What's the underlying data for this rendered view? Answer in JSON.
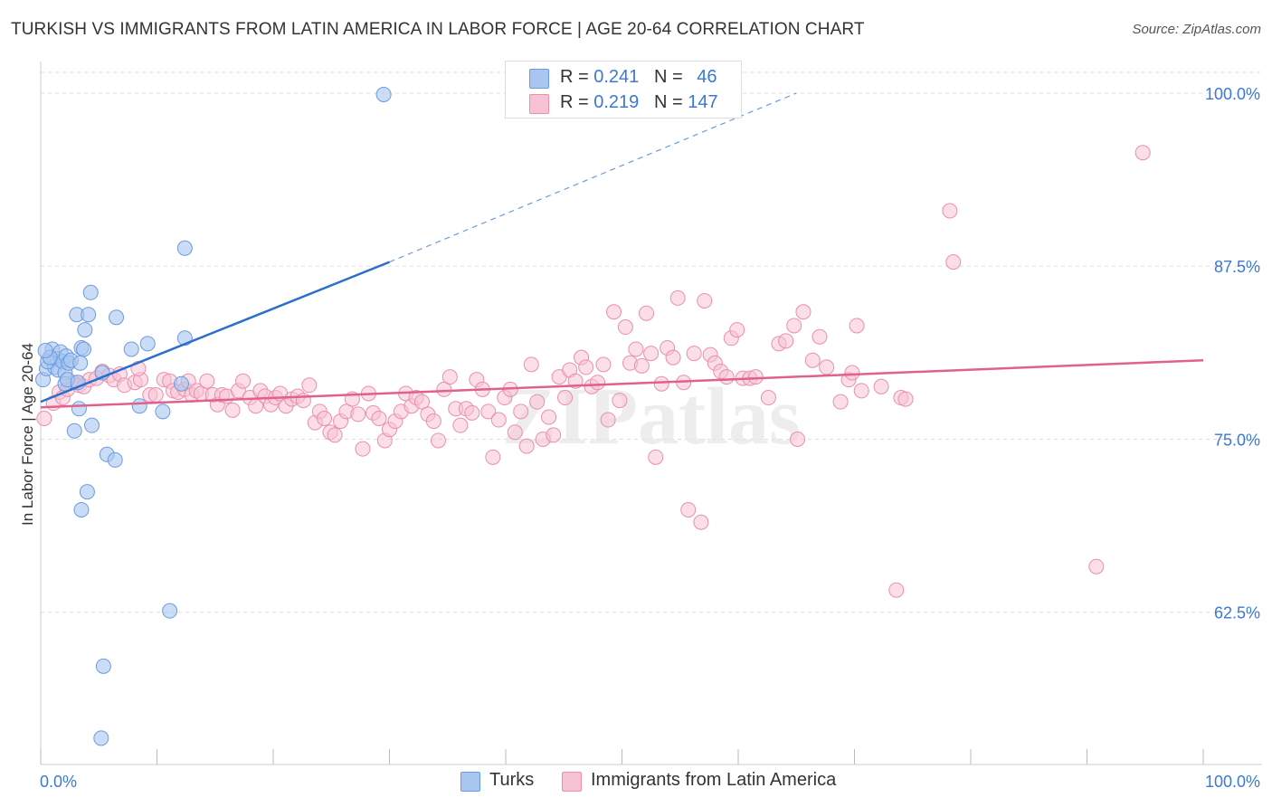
{
  "title": "TURKISH VS IMMIGRANTS FROM LATIN AMERICA IN LABOR FORCE | AGE 20-64 CORRELATION CHART",
  "source": "Source: ZipAtlas.com",
  "watermark": "ZIPatlas",
  "legend": {
    "turks": {
      "r_label": "R = ",
      "r_value": "0.241",
      "n_label": "N = ",
      "n_value": "46"
    },
    "latin": {
      "r_label": "R = ",
      "r_value": "0.219",
      "n_label": "N = ",
      "n_value": "147"
    }
  },
  "bottom_legend": {
    "turks": "Turks",
    "latin": "Immigrants from Latin America"
  },
  "colors": {
    "turks_fill": "#a8c6f0",
    "turks_stroke": "#6a9be0",
    "turks_line": "#2a6fcc",
    "latin_fill": "#f7c3d4",
    "latin_stroke": "#ea8fae",
    "latin_line": "#e0608e",
    "axis_text": "#3b78d8",
    "grid": "#dddddd"
  },
  "chart_data": {
    "type": "scatter",
    "title": "TURKISH VS IMMIGRANTS FROM LATIN AMERICA IN LABOR FORCE | AGE 20-64 CORRELATION CHART",
    "xlabel": "",
    "ylabel": "In Labor Force | Age 20-64",
    "xlim": [
      0,
      100
    ],
    "ylim": [
      51.5,
      101.5
    ],
    "x_tick_labels": [
      "0.0%",
      "100.0%"
    ],
    "y_ticks": [
      62.5,
      75.0,
      87.5,
      100.0
    ],
    "y_tick_labels": [
      "62.5%",
      "75.0%",
      "87.5%",
      "100.0%"
    ],
    "grid": true,
    "series": [
      {
        "name": "Turks",
        "points": [
          [
            0.2,
            79.3
          ],
          [
            0.5,
            80.1
          ],
          [
            0.8,
            80.9
          ],
          [
            1.0,
            81.5
          ],
          [
            1.2,
            80.2
          ],
          [
            1.4,
            80.8
          ],
          [
            1.5,
            80.0
          ],
          [
            1.7,
            81.3
          ],
          [
            1.9,
            80.6
          ],
          [
            2.1,
            79.8
          ],
          [
            2.2,
            81.0
          ],
          [
            2.4,
            80.5
          ],
          [
            2.6,
            80.7
          ],
          [
            2.1,
            79.0
          ],
          [
            2.3,
            79.3
          ],
          [
            2.9,
            75.6
          ],
          [
            3.2,
            79.1
          ],
          [
            3.4,
            80.5
          ],
          [
            3.5,
            81.6
          ],
          [
            3.3,
            77.2
          ],
          [
            3.7,
            81.5
          ],
          [
            3.1,
            84.0
          ],
          [
            3.8,
            82.9
          ],
          [
            3.5,
            69.9
          ],
          [
            4.1,
            84.0
          ],
          [
            4.0,
            71.2
          ],
          [
            4.4,
            76.0
          ],
          [
            4.3,
            85.6
          ],
          [
            5.3,
            79.8
          ],
          [
            5.4,
            58.6
          ],
          [
            5.2,
            53.4
          ],
          [
            5.7,
            73.9
          ],
          [
            6.4,
            73.5
          ],
          [
            6.5,
            83.8
          ],
          [
            7.8,
            81.5
          ],
          [
            8.5,
            77.4
          ],
          [
            9.2,
            81.9
          ],
          [
            10.5,
            77.0
          ],
          [
            11.1,
            62.6
          ],
          [
            12.1,
            79.0
          ],
          [
            12.4,
            82.3
          ],
          [
            12.4,
            88.8
          ],
          [
            29.5,
            99.9
          ],
          [
            0.6,
            80.6
          ],
          [
            0.8,
            80.9
          ],
          [
            0.4,
            81.4
          ]
        ],
        "trend": {
          "x": [
            0,
            30
          ],
          "y": [
            77.7,
            87.8
          ],
          "extended_x": [
            30,
            65
          ],
          "extended_y": [
            87.8,
            100.0
          ]
        }
      },
      {
        "name": "Immigrants from Latin America",
        "points": [
          [
            0.3,
            76.5
          ],
          [
            1.1,
            77.6
          ],
          [
            1.6,
            78.4
          ],
          [
            1.9,
            78.0
          ],
          [
            2.3,
            78.6
          ],
          [
            2.8,
            79.1
          ],
          [
            3.3,
            78.9
          ],
          [
            3.7,
            78.8
          ],
          [
            4.2,
            79.3
          ],
          [
            4.8,
            79.4
          ],
          [
            5.3,
            79.9
          ],
          [
            5.9,
            79.6
          ],
          [
            6.3,
            79.3
          ],
          [
            6.8,
            79.7
          ],
          [
            7.2,
            78.9
          ],
          [
            8.1,
            79.1
          ],
          [
            8.6,
            79.3
          ],
          [
            8.4,
            80.1
          ],
          [
            9.4,
            78.2
          ],
          [
            9.9,
            78.2
          ],
          [
            10.6,
            79.3
          ],
          [
            11.1,
            79.2
          ],
          [
            11.4,
            78.5
          ],
          [
            11.8,
            78.4
          ],
          [
            12.4,
            78.6
          ],
          [
            12.7,
            79.2
          ],
          [
            13.0,
            78.2
          ],
          [
            13.4,
            78.5
          ],
          [
            13.8,
            78.3
          ],
          [
            14.3,
            79.2
          ],
          [
            14.8,
            78.2
          ],
          [
            15.2,
            77.5
          ],
          [
            15.6,
            78.2
          ],
          [
            16.0,
            78.1
          ],
          [
            16.5,
            77.1
          ],
          [
            17.0,
            78.5
          ],
          [
            17.4,
            79.2
          ],
          [
            18.0,
            78.0
          ],
          [
            18.5,
            77.4
          ],
          [
            18.9,
            78.5
          ],
          [
            19.3,
            78.1
          ],
          [
            19.8,
            77.5
          ],
          [
            20.2,
            78.0
          ],
          [
            20.6,
            78.3
          ],
          [
            21.1,
            77.4
          ],
          [
            21.6,
            77.9
          ],
          [
            22.1,
            78.1
          ],
          [
            22.6,
            77.8
          ],
          [
            23.1,
            78.9
          ],
          [
            23.6,
            76.2
          ],
          [
            24.0,
            77.0
          ],
          [
            24.4,
            76.5
          ],
          [
            24.9,
            75.5
          ],
          [
            25.3,
            75.3
          ],
          [
            25.8,
            76.3
          ],
          [
            26.3,
            77.0
          ],
          [
            26.8,
            77.9
          ],
          [
            27.3,
            76.8
          ],
          [
            27.7,
            74.3
          ],
          [
            28.2,
            78.3
          ],
          [
            28.6,
            76.9
          ],
          [
            29.1,
            76.5
          ],
          [
            29.6,
            74.9
          ],
          [
            30.0,
            75.7
          ],
          [
            30.5,
            76.3
          ],
          [
            31.0,
            77.0
          ],
          [
            31.4,
            78.3
          ],
          [
            31.9,
            77.4
          ],
          [
            32.3,
            78.0
          ],
          [
            32.8,
            77.7
          ],
          [
            33.3,
            76.8
          ],
          [
            33.8,
            76.3
          ],
          [
            34.2,
            74.9
          ],
          [
            34.7,
            78.6
          ],
          [
            35.2,
            79.5
          ],
          [
            35.7,
            77.2
          ],
          [
            36.1,
            76.0
          ],
          [
            36.6,
            77.2
          ],
          [
            37.1,
            76.9
          ],
          [
            37.5,
            79.3
          ],
          [
            38.0,
            78.6
          ],
          [
            38.5,
            77.0
          ],
          [
            38.9,
            73.7
          ],
          [
            39.4,
            76.4
          ],
          [
            39.9,
            78.0
          ],
          [
            40.4,
            78.6
          ],
          [
            40.8,
            75.5
          ],
          [
            41.3,
            77.0
          ],
          [
            41.8,
            74.5
          ],
          [
            42.2,
            80.4
          ],
          [
            42.7,
            77.7
          ],
          [
            43.2,
            75.0
          ],
          [
            43.7,
            76.6
          ],
          [
            44.1,
            75.3
          ],
          [
            44.6,
            79.5
          ],
          [
            45.1,
            78.0
          ],
          [
            45.5,
            80.0
          ],
          [
            46.0,
            79.2
          ],
          [
            46.5,
            80.9
          ],
          [
            46.9,
            80.2
          ],
          [
            47.4,
            78.8
          ],
          [
            47.9,
            79.1
          ],
          [
            48.4,
            80.4
          ],
          [
            48.8,
            76.4
          ],
          [
            49.3,
            84.2
          ],
          [
            49.8,
            77.8
          ],
          [
            50.3,
            83.1
          ],
          [
            50.7,
            80.5
          ],
          [
            51.2,
            81.5
          ],
          [
            51.7,
            80.3
          ],
          [
            52.1,
            84.1
          ],
          [
            52.5,
            81.2
          ],
          [
            52.9,
            73.7
          ],
          [
            53.4,
            79.0
          ],
          [
            53.9,
            81.6
          ],
          [
            54.4,
            80.9
          ],
          [
            54.8,
            85.2
          ],
          [
            55.3,
            79.1
          ],
          [
            55.7,
            69.9
          ],
          [
            56.2,
            81.2
          ],
          [
            56.8,
            69.0
          ],
          [
            57.1,
            85.0
          ],
          [
            57.6,
            81.1
          ],
          [
            58.0,
            80.5
          ],
          [
            58.5,
            79.9
          ],
          [
            59.0,
            79.5
          ],
          [
            59.4,
            82.3
          ],
          [
            59.9,
            82.9
          ],
          [
            60.4,
            79.4
          ],
          [
            61.0,
            79.4
          ],
          [
            61.5,
            79.5
          ],
          [
            62.6,
            78.0
          ],
          [
            63.5,
            81.9
          ],
          [
            64.1,
            82.1
          ],
          [
            64.8,
            83.2
          ],
          [
            65.1,
            75.0
          ],
          [
            65.6,
            84.2
          ],
          [
            66.4,
            80.7
          ],
          [
            67.0,
            82.4
          ],
          [
            67.6,
            80.2
          ],
          [
            68.8,
            77.7
          ],
          [
            69.5,
            79.3
          ],
          [
            69.8,
            79.8
          ],
          [
            70.2,
            83.2
          ],
          [
            70.6,
            78.5
          ],
          [
            72.3,
            78.8
          ],
          [
            73.6,
            64.1
          ],
          [
            74.0,
            78.0
          ],
          [
            74.4,
            77.9
          ],
          [
            78.2,
            91.5
          ],
          [
            90.8,
            65.8
          ],
          [
            94.8,
            95.7
          ],
          [
            78.5,
            87.8
          ]
        ],
        "trend": {
          "x": [
            0,
            100
          ],
          "y": [
            77.3,
            80.7
          ]
        }
      }
    ]
  }
}
